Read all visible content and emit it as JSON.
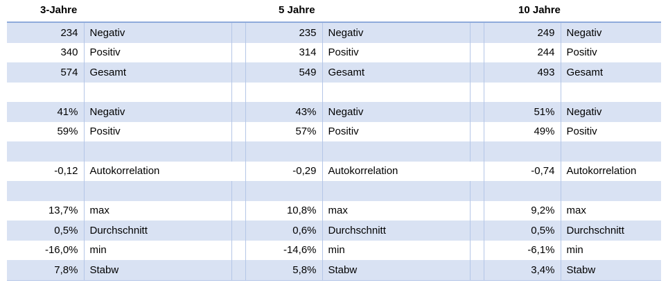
{
  "headers": [
    "3-Jahre",
    "5 Jahre",
    "10 Jahre"
  ],
  "rows": [
    {
      "band": true,
      "type": "data",
      "cells": [
        [
          "234",
          "Negativ"
        ],
        [
          "235",
          "Negativ"
        ],
        [
          "249",
          "Negativ"
        ]
      ]
    },
    {
      "band": false,
      "type": "data",
      "cells": [
        [
          "340",
          "Positiv"
        ],
        [
          "314",
          "Positiv"
        ],
        [
          "244",
          "Positiv"
        ]
      ]
    },
    {
      "band": true,
      "type": "data",
      "cells": [
        [
          "574",
          "Gesamt"
        ],
        [
          "549",
          "Gesamt"
        ],
        [
          "493",
          "Gesamt"
        ]
      ]
    },
    {
      "band": false,
      "type": "empty"
    },
    {
      "band": true,
      "type": "data",
      "cells": [
        [
          "41%",
          "Negativ"
        ],
        [
          "43%",
          "Negativ"
        ],
        [
          "51%",
          "Negativ"
        ]
      ]
    },
    {
      "band": false,
      "type": "data",
      "cells": [
        [
          "59%",
          "Positiv"
        ],
        [
          "57%",
          "Positiv"
        ],
        [
          "49%",
          "Positiv"
        ]
      ]
    },
    {
      "band": true,
      "type": "empty"
    },
    {
      "band": false,
      "type": "data",
      "wide": true,
      "cells": [
        [
          "-0,12",
          "Autokorrelation"
        ],
        [
          "-0,29",
          "Autokorrelation"
        ],
        [
          "-0,74",
          "Autokorrelation"
        ]
      ]
    },
    {
      "band": true,
      "type": "empty"
    },
    {
      "band": false,
      "type": "data",
      "cells": [
        [
          "13,7%",
          "max"
        ],
        [
          "10,8%",
          "max"
        ],
        [
          "9,2%",
          "max"
        ]
      ]
    },
    {
      "band": true,
      "type": "data",
      "cells": [
        [
          "0,5%",
          "Durchschnitt"
        ],
        [
          "0,6%",
          "Durchschnitt"
        ],
        [
          "0,5%",
          "Durchschnitt"
        ]
      ]
    },
    {
      "band": false,
      "type": "data",
      "cells": [
        [
          "-16,0%",
          "min"
        ],
        [
          "-14,6%",
          "min"
        ],
        [
          "-6,1%",
          "min"
        ]
      ]
    },
    {
      "band": true,
      "type": "data",
      "cells": [
        [
          "7,8%",
          "Stabw"
        ],
        [
          "5,8%",
          "Stabw"
        ],
        [
          "3,4%",
          "Stabw"
        ]
      ]
    }
  ]
}
